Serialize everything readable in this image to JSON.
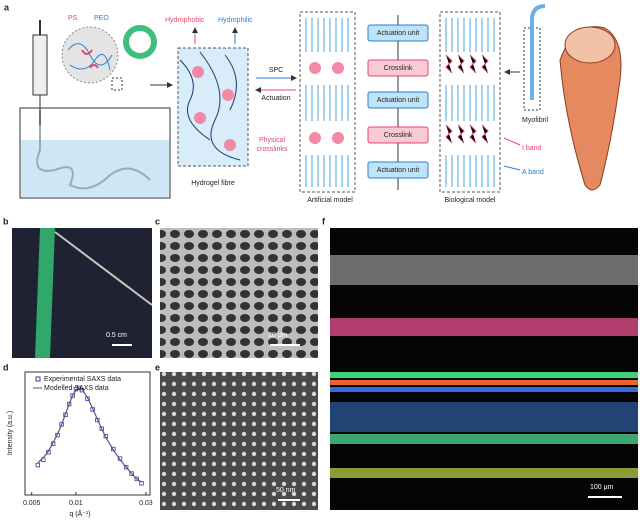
{
  "panels": {
    "a": {
      "label": "a",
      "ps": "PS",
      "peo": "PEO",
      "hydrophobic": "Hydrophobic",
      "hydrophilic": "Hydrophilic",
      "spc": "SPC",
      "actuation": "Actuation",
      "physical_crosslinks": [
        "Physical",
        "crosslinks"
      ],
      "hydrogel_fibre": "Hydrogel fibre",
      "artificial_model": "Artificial model",
      "units": [
        "Actuation unit",
        "Crosslink",
        "Actuation unit",
        "Crosslink",
        "Actuation unit"
      ],
      "biological_model": "Biological model",
      "myofibril": "Myofibril",
      "i_band": "I band",
      "a_band": "A band"
    },
    "b": {
      "label": "b",
      "scale_bar": "0.5 cm"
    },
    "c": {
      "label": "c",
      "scale_bar": "20 μm"
    },
    "e": {
      "label": "e",
      "scale_bar": "50 nm"
    },
    "f": {
      "label": "f",
      "scale_bar": "100 μm"
    }
  },
  "chart_data": {
    "type": "scatter",
    "label": "d",
    "x_label": "q (Å⁻¹)",
    "y_label": "Intensity (a.u.)",
    "xlog": true,
    "x": [
      0.0055,
      0.006,
      0.0065,
      0.007,
      0.0075,
      0.008,
      0.0085,
      0.009,
      0.0095,
      0.01,
      0.0105,
      0.011,
      0.012,
      0.013,
      0.014,
      0.015,
      0.016,
      0.018,
      0.02,
      0.022,
      0.024,
      0.026,
      0.028
    ],
    "series": [
      {
        "name": "Experimental SAXS data",
        "color": "#3a3aa8",
        "values": [
          0.28,
          0.33,
          0.4,
          0.48,
          0.56,
          0.66,
          0.75,
          0.85,
          0.93,
          0.99,
          1.0,
          0.98,
          0.9,
          0.8,
          0.7,
          0.62,
          0.55,
          0.43,
          0.34,
          0.26,
          0.2,
          0.15,
          0.11
        ]
      },
      {
        "name": "Modelled SAXS data",
        "color": "#555577",
        "values": [
          0.3,
          0.35,
          0.41,
          0.49,
          0.57,
          0.66,
          0.76,
          0.85,
          0.93,
          0.98,
          1.0,
          0.99,
          0.91,
          0.81,
          0.71,
          0.62,
          0.54,
          0.42,
          0.33,
          0.26,
          0.2,
          0.15,
          0.12
        ]
      }
    ],
    "xlim": [
      0.0045,
      0.032
    ],
    "xticks": [
      0.005,
      0.01,
      0.03
    ],
    "ylim": [
      0,
      1.15
    ]
  }
}
